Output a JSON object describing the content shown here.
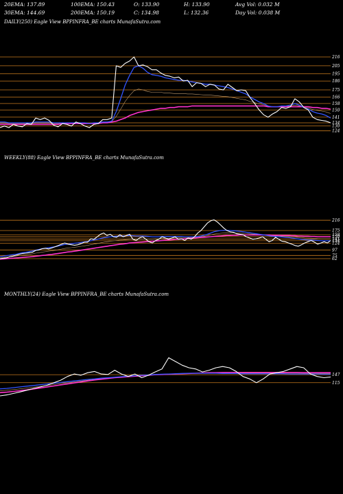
{
  "header": {
    "row1": {
      "ema20": "20EMA: 137.89",
      "ema100": "100EMA: 150.43",
      "open": "O: 133.90",
      "high": "H: 133.90",
      "avgvol": "Avg Vol: 0.032  M"
    },
    "row2": {
      "ema30": "30EMA: 144.69",
      "ema200": "200EMA: 150.19",
      "close": "C: 134.98",
      "low": "L: 132.36",
      "dayvol": "Day Vol: 0.038  M"
    }
  },
  "panels": {
    "daily_title": "DAILY(250) Eagle   View  BPPINFRA_BE charts MunafaSutra.com",
    "weekly_title": "WEEKLY(88) Eagle   View  BPPINFRA_BE charts MunafaSutra.com",
    "monthly_title": "MONTHLY(24) Eagle   View  BPPINFRA_BE charts MunafaSutra.com"
  },
  "colors": {
    "price": "#ffffff",
    "ema_short": "#3355ff",
    "ema_long": "#ff33cc",
    "levels": "#c87a1e",
    "ema_mid": "#c8a070"
  },
  "chart_data": [
    {
      "type": "line",
      "name": "daily",
      "ylim": [
        128,
        222
      ],
      "ticks": [
        216,
        205,
        195,
        186,
        175,
        166,
        158,
        150,
        141,
        134,
        130,
        124
      ],
      "price": [
        128,
        130,
        128,
        132,
        130,
        129,
        133,
        132,
        140,
        138,
        140,
        137,
        131,
        129,
        133,
        132,
        130,
        135,
        133,
        130,
        128,
        132,
        133,
        138,
        138,
        140,
        205,
        203,
        208,
        211,
        216,
        205,
        206,
        204,
        200,
        200,
        196,
        193,
        192,
        190,
        191,
        186,
        187,
        179,
        184,
        183,
        179,
        182,
        181,
        176,
        175,
        182,
        178,
        174,
        175,
        174,
        165,
        158,
        150,
        144,
        141,
        145,
        148,
        153,
        152,
        154,
        164,
        160,
        153,
        150,
        141,
        138,
        137,
        136,
        134
      ],
      "ema_short": [
        135,
        135,
        134,
        134,
        134,
        134,
        134,
        134,
        135,
        135,
        135,
        135,
        134,
        134,
        134,
        134,
        134,
        134,
        134,
        134,
        133,
        134,
        134,
        135,
        135,
        136,
        148,
        164,
        181,
        193,
        203,
        205,
        202,
        197,
        194,
        193,
        192,
        190,
        189,
        188,
        187,
        187,
        186,
        185,
        184,
        183,
        182,
        182,
        181,
        180,
        179,
        178,
        176,
        174,
        172,
        170,
        166,
        163,
        160,
        158,
        155,
        154,
        154,
        155,
        155,
        156,
        158,
        156,
        153,
        151,
        148,
        146,
        145,
        143,
        140
      ],
      "ema_long": [
        132,
        132,
        132,
        132,
        132,
        132,
        132,
        132,
        132,
        132,
        132,
        132,
        132,
        132,
        133,
        133,
        133,
        133,
        133,
        133,
        133,
        133,
        133,
        134,
        134,
        135,
        136,
        138,
        140,
        143,
        145,
        147,
        148,
        149,
        150,
        151,
        152,
        152,
        153,
        153,
        154,
        154,
        154,
        155,
        155,
        155,
        155,
        155,
        155,
        155,
        155,
        155,
        155,
        155,
        155,
        155,
        155,
        155,
        155,
        155,
        154,
        154,
        154,
        154,
        154,
        154,
        154,
        154,
        154,
        154,
        153,
        153,
        152,
        152,
        151
      ]
    },
    {
      "type": "line",
      "name": "weekly",
      "ylim": [
        40,
        230
      ],
      "ticks": [
        216,
        175,
        158,
        150,
        141,
        134,
        124,
        97,
        75,
        62
      ],
      "price": [
        62,
        64,
        65,
        70,
        72,
        76,
        80,
        83,
        84,
        86,
        88,
        95,
        97,
        102,
        104,
        101,
        105,
        110,
        115,
        120,
        125,
        120,
        118,
        116,
        118,
        122,
        128,
        128,
        142,
        140,
        150,
        160,
        165,
        155,
        160,
        150,
        148,
        158,
        150,
        155,
        160,
        140,
        135,
        145,
        150,
        140,
        130,
        125,
        135,
        140,
        150,
        145,
        140,
        145,
        150,
        140,
        142,
        135,
        145,
        140,
        150,
        165,
        175,
        190,
        205,
        214,
        218,
        210,
        198,
        185,
        175,
        170,
        168,
        162,
        160,
        158,
        150,
        145,
        140,
        142,
        145,
        150,
        140,
        130,
        135,
        148,
        140,
        132,
        130,
        125,
        120,
        115,
        112,
        118,
        125,
        130,
        135,
        128,
        120,
        125,
        130,
        125,
        135
      ],
      "ema_short": [
        70,
        72,
        74,
        76,
        78,
        80,
        83,
        86,
        88,
        90,
        93,
        96,
        99,
        102,
        104,
        106,
        108,
        110,
        113,
        116,
        119,
        121,
        122,
        124,
        125,
        127,
        129,
        131,
        134,
        137,
        140,
        143,
        146,
        148,
        150,
        151,
        152,
        153,
        153,
        154,
        155,
        154,
        153,
        153,
        153,
        152,
        151,
        150,
        150,
        150,
        151,
        151,
        151,
        151,
        151,
        151,
        151,
        150,
        150,
        150,
        150,
        151,
        153,
        156,
        160,
        165,
        170,
        173,
        175,
        176,
        176,
        175,
        174,
        173,
        172,
        170,
        168,
        166,
        164,
        162,
        160,
        158,
        156,
        154,
        152,
        151,
        150,
        149,
        148,
        147,
        145,
        143,
        141,
        139,
        138,
        137,
        137,
        136,
        135,
        134,
        134,
        134,
        134
      ],
      "ema_long": [
        60,
        61,
        62,
        63,
        64,
        65,
        66,
        67,
        68,
        69,
        70,
        72,
        73,
        75,
        76,
        78,
        79,
        81,
        83,
        85,
        87,
        89,
        90,
        92,
        94,
        96,
        98,
        100,
        102,
        104,
        106,
        108,
        110,
        112,
        114,
        116,
        118,
        120,
        121,
        123,
        125,
        126,
        127,
        128,
        129,
        130,
        131,
        132,
        133,
        134,
        135,
        136,
        137,
        138,
        139,
        140,
        141,
        142,
        143,
        144,
        145,
        146,
        147,
        148,
        149,
        150,
        151,
        152,
        153,
        154,
        155,
        155,
        156,
        156,
        157,
        157,
        157,
        157,
        157,
        157,
        157,
        157,
        157,
        157,
        156,
        156,
        156,
        155,
        155,
        155,
        154,
        154,
        153,
        153,
        152,
        152,
        151,
        151,
        150,
        150,
        150,
        150,
        150
      ]
    },
    {
      "type": "line",
      "name": "monthly",
      "ylim": [
        40,
        230
      ],
      "ticks": [
        147,
        115
      ],
      "price": [
        62,
        66,
        72,
        78,
        85,
        92,
        98,
        105,
        115,
        125,
        140,
        150,
        145,
        155,
        160,
        150,
        148,
        165,
        150,
        140,
        150,
        135,
        145,
        158,
        170,
        215,
        200,
        185,
        175,
        170,
        158,
        165,
        175,
        180,
        175,
        160,
        140,
        130,
        115,
        130,
        150,
        155,
        160,
        170,
        180,
        175,
        150,
        140,
        135,
        138
      ],
      "ema_short": [
        90,
        92,
        95,
        98,
        101,
        104,
        107,
        110,
        113,
        116,
        119,
        122,
        125,
        128,
        130,
        133,
        135,
        137,
        139,
        141,
        143,
        145,
        146,
        148,
        149,
        150,
        151,
        152,
        153,
        153,
        153,
        153,
        153,
        152,
        152,
        152,
        151,
        151,
        151,
        151,
        151,
        151,
        151,
        150,
        150,
        150,
        150,
        150,
        149,
        149
      ],
      "ema_long": [
        75,
        77,
        80,
        83,
        86,
        90,
        94,
        98,
        102,
        106,
        110,
        114,
        118,
        122,
        126,
        129,
        132,
        135,
        137,
        139,
        141,
        143,
        145,
        147,
        148,
        149,
        150,
        151,
        152,
        153,
        154,
        155,
        155,
        156,
        156,
        156,
        156,
        156,
        156,
        156,
        156,
        156,
        156,
        156,
        156,
        155,
        155,
        155,
        155,
        155
      ]
    }
  ]
}
